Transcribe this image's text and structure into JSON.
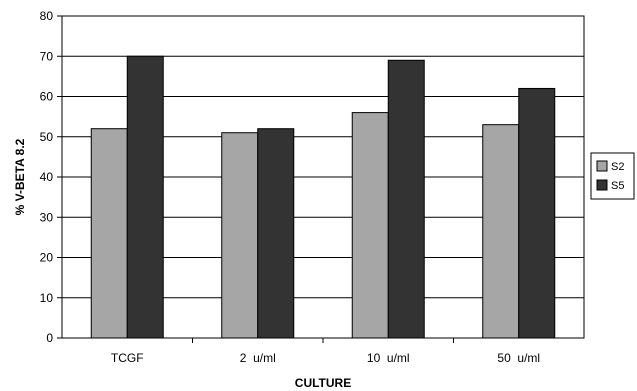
{
  "chart_data": {
    "type": "bar",
    "title": "",
    "xlabel": "CULTURE",
    "ylabel": "% V-BETA 8.2",
    "categories": [
      "TCGF",
      "2  u/ml",
      "10  u/ml",
      "50  u/ml"
    ],
    "series": [
      {
        "name": "S2",
        "values": [
          52,
          51,
          56,
          53
        ],
        "color": "#a6a6a6"
      },
      {
        "name": "S5",
        "values": [
          70,
          52,
          69,
          62
        ],
        "color": "#333333"
      }
    ],
    "ylim": [
      0,
      80
    ],
    "yticks": [
      0,
      10,
      20,
      30,
      40,
      50,
      60,
      70,
      80
    ],
    "grid": true,
    "legend": "right"
  }
}
